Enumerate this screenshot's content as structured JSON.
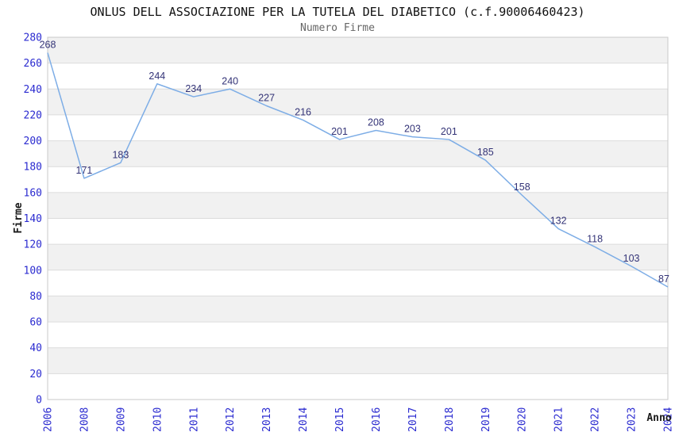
{
  "chart_data": {
    "type": "line",
    "title": "ONLUS DELL ASSOCIAZIONE PER LA TUTELA DEL DIABETICO (c.f.90006460423)",
    "subtitle": "Numero Firme",
    "xlabel": "Anno",
    "ylabel": "Firme",
    "categories": [
      "2006",
      "2008",
      "2009",
      "2010",
      "2011",
      "2012",
      "2013",
      "2014",
      "2015",
      "2016",
      "2017",
      "2018",
      "2019",
      "2020",
      "2021",
      "2022",
      "2023",
      "2024"
    ],
    "values": [
      268,
      171,
      183,
      244,
      234,
      240,
      227,
      216,
      201,
      208,
      203,
      201,
      185,
      158,
      132,
      118,
      103,
      87
    ],
    "ylim": [
      0,
      280
    ],
    "ytick_step": 20,
    "grid": "horizontal-bands",
    "legend": "none",
    "colors": {
      "line": "#7dade6",
      "tick_label": "#2b2bd0",
      "data_label": "#333377",
      "band": "#f1f1f1",
      "gridline": "#dcdcdc",
      "plot_border": "#c9c9c9",
      "axis_title": "#1a1a1a",
      "title": "#111111",
      "subtitle": "#666666"
    }
  }
}
